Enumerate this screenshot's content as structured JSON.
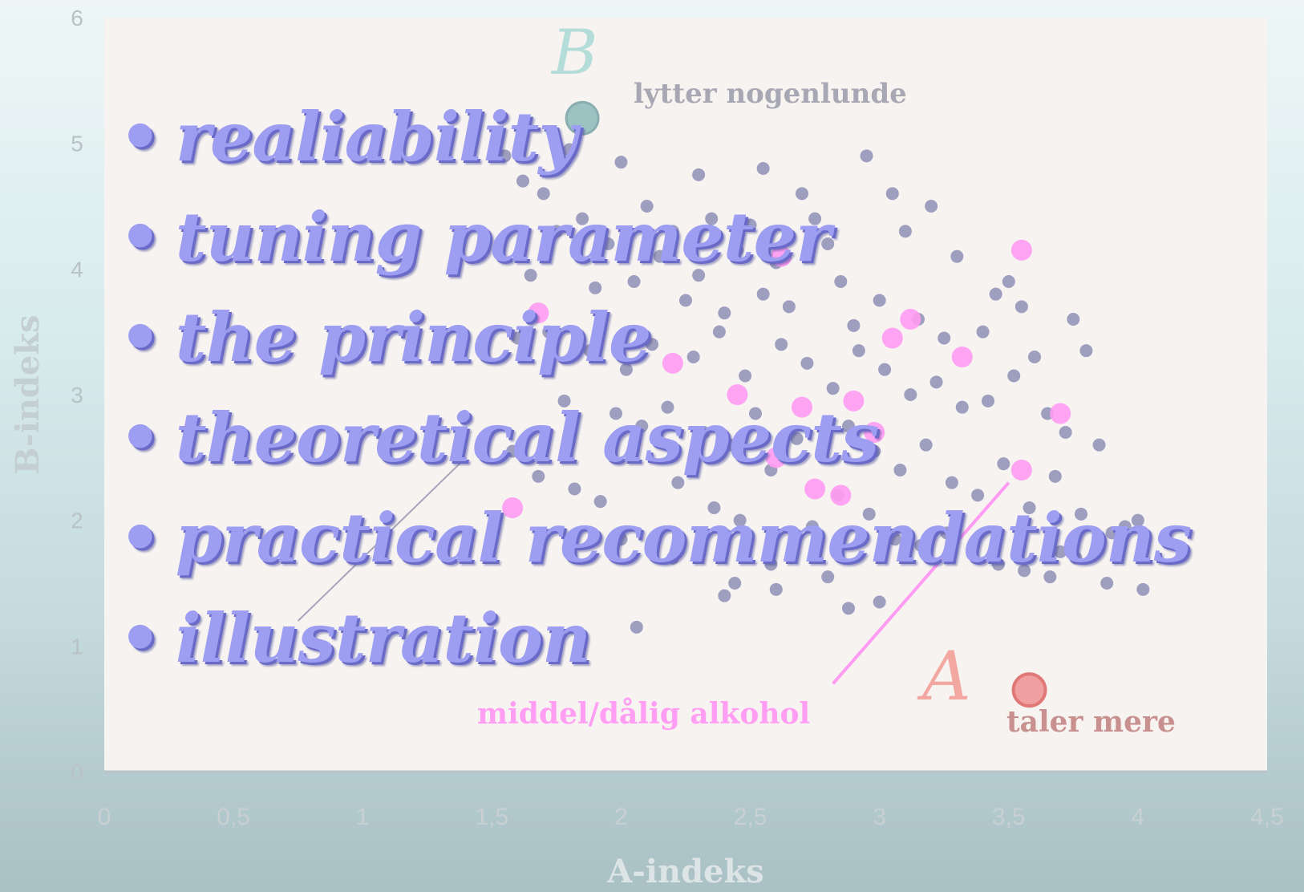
{
  "bullets": [
    "realiability",
    "tuning parameter",
    "the principle",
    "theoretical aspects",
    "practical recommendations",
    "illustration"
  ],
  "bullet_glyph": "•",
  "colors": {
    "bullet_text": "#9d9df2",
    "points": "#8e8eb6",
    "highlight": "#ff9bf2",
    "point_A": "#f0a0a0",
    "point_B": "#9cc2c2",
    "plot_bg": "#f6f3f1"
  },
  "chart_data": {
    "type": "scatter",
    "xlabel": "A-indeks",
    "ylabel": "B-indeks",
    "xlim": [
      0,
      4.5
    ],
    "ylim": [
      0,
      6
    ],
    "xticks": [
      "0",
      "0,5",
      "1",
      "1,5",
      "2",
      "2,5",
      "3",
      "3,5",
      "4",
      "4,5"
    ],
    "yticks": [
      "0",
      "1",
      "2",
      "3",
      "4",
      "5",
      "6"
    ],
    "grid": false,
    "annotations": [
      {
        "name": "label-A",
        "text": "A",
        "x": 3.3,
        "y": 0.7
      },
      {
        "name": "label-B",
        "text": "B",
        "x": 1.8,
        "y": 5.7
      },
      {
        "name": "label-taler-mere",
        "text": "taler mere",
        "x": 3.7,
        "y": 0.35
      },
      {
        "name": "label-lytter",
        "text": "lytter nogenlunde",
        "x": 2.6,
        "y": 5.3
      },
      {
        "name": "label-middel",
        "text": "middel/dålig alkohol",
        "x": 2.2,
        "y": 0.45
      }
    ],
    "special_points": [
      {
        "name": "point-A",
        "x": 3.58,
        "y": 0.65
      },
      {
        "name": "point-B",
        "x": 1.85,
        "y": 5.2
      }
    ],
    "highlight_line": [
      [
        2.82,
        0.7
      ],
      [
        3.5,
        2.3
      ]
    ],
    "grey_line": [
      [
        0.75,
        1.2
      ],
      [
        1.4,
        2.5
      ]
    ],
    "series": [
      {
        "x": [
          1.55,
          1.8,
          1.62,
          1.7,
          2.0,
          2.1,
          2.3,
          2.35,
          2.55,
          2.7,
          2.95,
          3.05,
          3.2,
          1.75,
          1.85,
          1.95,
          2.15,
          2.2,
          2.45,
          2.5,
          2.6,
          2.75,
          2.8,
          3.1,
          3.3,
          3.45,
          3.5,
          3.55,
          3.75,
          1.65,
          1.9,
          2.05,
          2.25,
          2.3,
          2.4,
          2.55,
          2.65,
          2.85,
          2.9,
          3.0,
          3.15,
          3.25,
          3.4,
          3.6,
          3.8,
          1.6,
          1.72,
          1.88,
          2.02,
          2.12,
          2.28,
          2.38,
          2.48,
          2.62,
          2.72,
          2.82,
          2.92,
          3.02,
          3.12,
          3.22,
          3.32,
          3.42,
          3.52,
          3.65,
          3.72,
          3.85,
          1.58,
          1.78,
          1.98,
          2.08,
          2.18,
          2.32,
          2.42,
          2.52,
          2.68,
          2.78,
          2.88,
          2.98,
          3.08,
          3.18,
          3.28,
          3.38,
          3.48,
          3.58,
          3.68,
          3.78,
          3.9,
          4.0,
          1.68,
          1.82,
          1.92,
          2.22,
          2.36,
          2.46,
          2.58,
          2.74,
          2.84,
          2.96,
          3.06,
          3.16,
          3.26,
          3.36,
          3.46,
          3.56,
          3.66,
          3.76,
          3.88,
          2.0,
          2.2,
          2.4,
          2.6,
          2.8,
          3.0,
          2.44,
          2.58,
          2.88,
          2.06,
          3.7,
          3.95,
          4.02
        ],
        "y": [
          4.9,
          4.95,
          4.7,
          4.6,
          4.85,
          4.5,
          4.75,
          4.4,
          4.8,
          4.6,
          4.9,
          4.6,
          4.5,
          4.3,
          4.4,
          4.2,
          4.1,
          4.3,
          4.15,
          4.35,
          4.05,
          4.4,
          4.2,
          4.3,
          4.1,
          3.8,
          3.9,
          3.7,
          3.6,
          3.95,
          3.85,
          3.9,
          3.75,
          3.95,
          3.65,
          3.8,
          3.7,
          3.9,
          3.55,
          3.75,
          3.6,
          3.45,
          3.5,
          3.3,
          3.35,
          3.45,
          3.5,
          3.35,
          3.2,
          3.4,
          3.3,
          3.5,
          3.15,
          3.4,
          3.25,
          3.05,
          3.35,
          3.2,
          3.0,
          3.1,
          2.9,
          2.95,
          3.15,
          2.85,
          2.7,
          2.6,
          2.55,
          2.95,
          2.85,
          2.75,
          2.9,
          2.7,
          2.6,
          2.85,
          2.65,
          2.5,
          2.75,
          2.55,
          2.4,
          2.6,
          2.3,
          2.2,
          2.45,
          2.1,
          2.35,
          2.05,
          1.9,
          2.0,
          2.35,
          2.25,
          2.15,
          2.3,
          2.1,
          2.0,
          2.4,
          1.95,
          2.2,
          2.05,
          1.85,
          1.8,
          1.9,
          1.75,
          1.65,
          1.6,
          1.55,
          1.7,
          1.5,
          1.85,
          1.7,
          1.4,
          1.45,
          1.55,
          1.35,
          1.5,
          1.65,
          1.3,
          1.15,
          1.75,
          1.95,
          1.45
        ]
      },
      {
        "name": "highlight",
        "x": [
          1.58,
          1.68,
          2.2,
          2.62,
          2.7,
          2.9,
          2.98,
          3.05,
          3.12,
          3.32,
          3.55,
          3.55,
          2.85,
          3.7,
          2.6,
          2.75,
          2.45
        ],
        "y": [
          2.1,
          3.65,
          3.25,
          4.1,
          2.9,
          2.95,
          2.7,
          3.45,
          3.6,
          3.3,
          4.15,
          2.4,
          2.2,
          2.85,
          2.5,
          2.25,
          3.0
        ]
      }
    ]
  }
}
